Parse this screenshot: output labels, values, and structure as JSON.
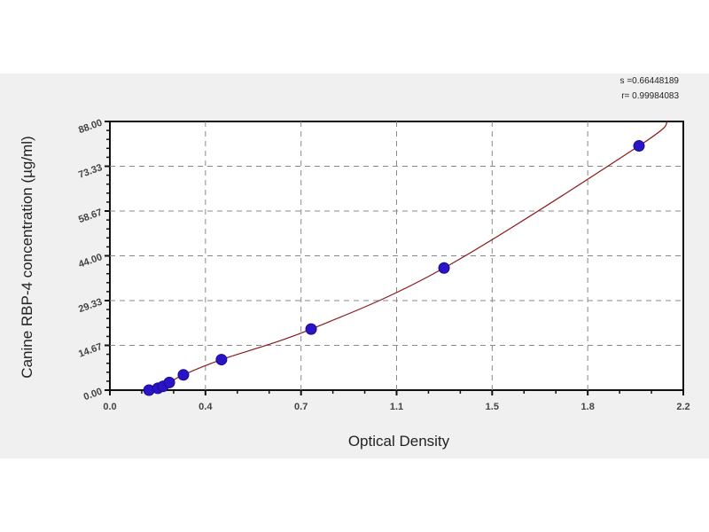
{
  "chart_data": {
    "type": "scatter",
    "title": "",
    "xlabel": "Optical Density",
    "ylabel": "Canine RBP-4 concentration (µg/ml)",
    "xlim": [
      0,
      2.2
    ],
    "ylim": [
      0,
      88
    ],
    "x_ticks": [
      "0.0",
      "0.4",
      "0.7",
      "1.1",
      "1.5",
      "1.8",
      "2.2"
    ],
    "y_ticks": [
      "0.00",
      "14.67",
      "29.33",
      "44.00",
      "58.67",
      "73.33",
      "88.00"
    ],
    "grid": true,
    "points": {
      "x": [
        0.15,
        0.184,
        0.204,
        0.228,
        0.282,
        0.428,
        0.772,
        1.282,
        2.03
      ],
      "y": [
        0,
        0.625,
        1.25,
        2.5,
        5,
        10,
        20,
        40,
        80
      ]
    },
    "fit_curve_end": {
      "x": 2.14,
      "y": 88
    },
    "stats": [
      "s =0.66448189",
      "r= 0.99984083"
    ],
    "colors": {
      "points": "#2a14c8",
      "curve": "#8b1a1a",
      "grid": "#888888",
      "panel": "#f0f0f0"
    }
  }
}
